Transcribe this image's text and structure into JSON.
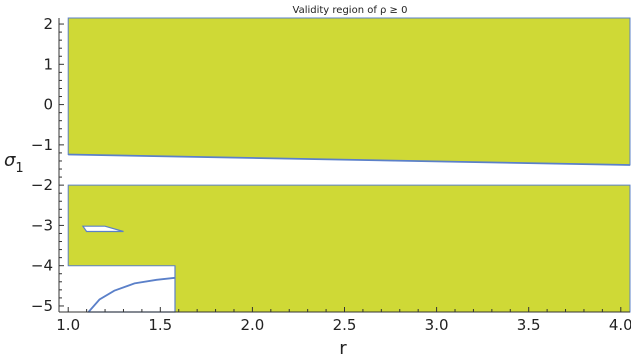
{
  "chart_data": {
    "type": "area",
    "title": "Validity region of ρ ≥ 0",
    "xlabel": "r",
    "ylabel_main": "σ",
    "ylabel_sub": "1",
    "xlim": [
      0.95,
      4.05
    ],
    "ylim": [
      -5.15,
      2.15
    ],
    "x_ticks": [
      1.0,
      1.5,
      2.0,
      2.5,
      3.0,
      3.5,
      4.0
    ],
    "x_tick_labels": [
      "1.0",
      "1.5",
      "2.0",
      "2.5",
      "3.0",
      "3.5",
      "4.0"
    ],
    "y_ticks": [
      2,
      1,
      0,
      -1,
      -2,
      -3,
      -4,
      -5
    ],
    "y_tick_labels": [
      "2",
      "1",
      "0",
      "−1",
      "−2",
      "−3",
      "−4",
      "−5"
    ],
    "fill_color": "#cfd936",
    "boundary_color": "#5b80c9",
    "regions": [
      {
        "name": "upper-valid-region",
        "polygon": [
          [
            1.0,
            2.15
          ],
          [
            4.05,
            2.15
          ],
          [
            4.05,
            -1.5
          ],
          [
            1.0,
            -1.24
          ]
        ]
      },
      {
        "name": "lower-valid-region",
        "polygon": [
          [
            1.0,
            -2.0
          ],
          [
            4.05,
            -2.0
          ],
          [
            4.05,
            -5.15
          ],
          [
            1.58,
            -5.15
          ],
          [
            1.58,
            -4.0
          ],
          [
            1.0,
            -4.0
          ]
        ]
      }
    ],
    "holes": [
      {
        "name": "small-hole",
        "polygon": [
          [
            1.08,
            -3.02
          ],
          [
            1.2,
            -3.02
          ],
          [
            1.3,
            -3.15
          ],
          [
            1.1,
            -3.15
          ]
        ]
      },
      {
        "name": "lower-left-hole",
        "polygon": [
          [
            1.58,
            -4.0
          ],
          [
            1.58,
            -4.3
          ],
          [
            1.48,
            -4.35
          ],
          [
            1.36,
            -4.44
          ],
          [
            1.25,
            -4.62
          ],
          [
            1.17,
            -4.84
          ],
          [
            1.11,
            -5.15
          ],
          [
            1.58,
            -5.15
          ]
        ]
      }
    ],
    "boundary_curves": [
      {
        "name": "upper-boundary",
        "points": [
          [
            1.0,
            -1.24
          ],
          [
            4.05,
            -1.5
          ]
        ]
      },
      {
        "name": "curved-boundary",
        "points": [
          [
            1.58,
            -4.3
          ],
          [
            1.48,
            -4.35
          ],
          [
            1.36,
            -4.44
          ],
          [
            1.25,
            -4.62
          ],
          [
            1.17,
            -4.84
          ],
          [
            1.11,
            -5.15
          ]
        ]
      }
    ]
  }
}
